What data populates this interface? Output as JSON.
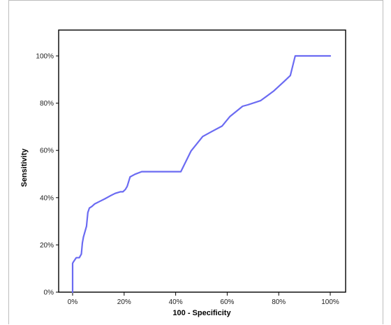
{
  "chart_data": {
    "type": "line",
    "title": "",
    "xlabel": "100 - Specificity",
    "ylabel": "Sensitivity",
    "xlim": [
      0,
      100
    ],
    "ylim": [
      0,
      100
    ],
    "x_ticks": [
      0,
      20,
      40,
      60,
      80,
      100
    ],
    "y_ticks": [
      0,
      20,
      40,
      60,
      80,
      100
    ],
    "x_tick_labels": [
      "0%",
      "20%",
      "40%",
      "60%",
      "80%",
      "100%"
    ],
    "y_tick_labels": [
      "0%",
      "20%",
      "40%",
      "60%",
      "80%",
      "100%"
    ],
    "grid": false,
    "legend": false,
    "series": [
      {
        "color": "#6b6bf2",
        "x": [
          0,
          0,
          0.3,
          1.4,
          2.6,
          3.4,
          3.5,
          3.8,
          4.2,
          5.4,
          5.9,
          6.5,
          7.5,
          8.5,
          10.5,
          12.5,
          14.5,
          16.5,
          18.5,
          19.5,
          20.5,
          21.2,
          22.3,
          24.2,
          26.8,
          30,
          35,
          42,
          46,
          50.5,
          54,
          58,
          61,
          66,
          68,
          73,
          78,
          82,
          84.5,
          86.4,
          92,
          100
        ],
        "y": [
          0,
          12.2,
          12.8,
          14.6,
          14.6,
          16.1,
          17.3,
          20.9,
          23.3,
          27.9,
          33.7,
          35.6,
          36.3,
          37.3,
          38.4,
          39.5,
          40.7,
          41.8,
          42.5,
          42.5,
          43.5,
          44.8,
          48.8,
          49.9,
          51.0,
          51.0,
          51.0,
          51.0,
          59.8,
          65.9,
          68,
          70.3,
          74.3,
          78.7,
          79.3,
          81.1,
          85.1,
          89.1,
          91.7,
          100,
          100,
          100
        ]
      }
    ]
  }
}
